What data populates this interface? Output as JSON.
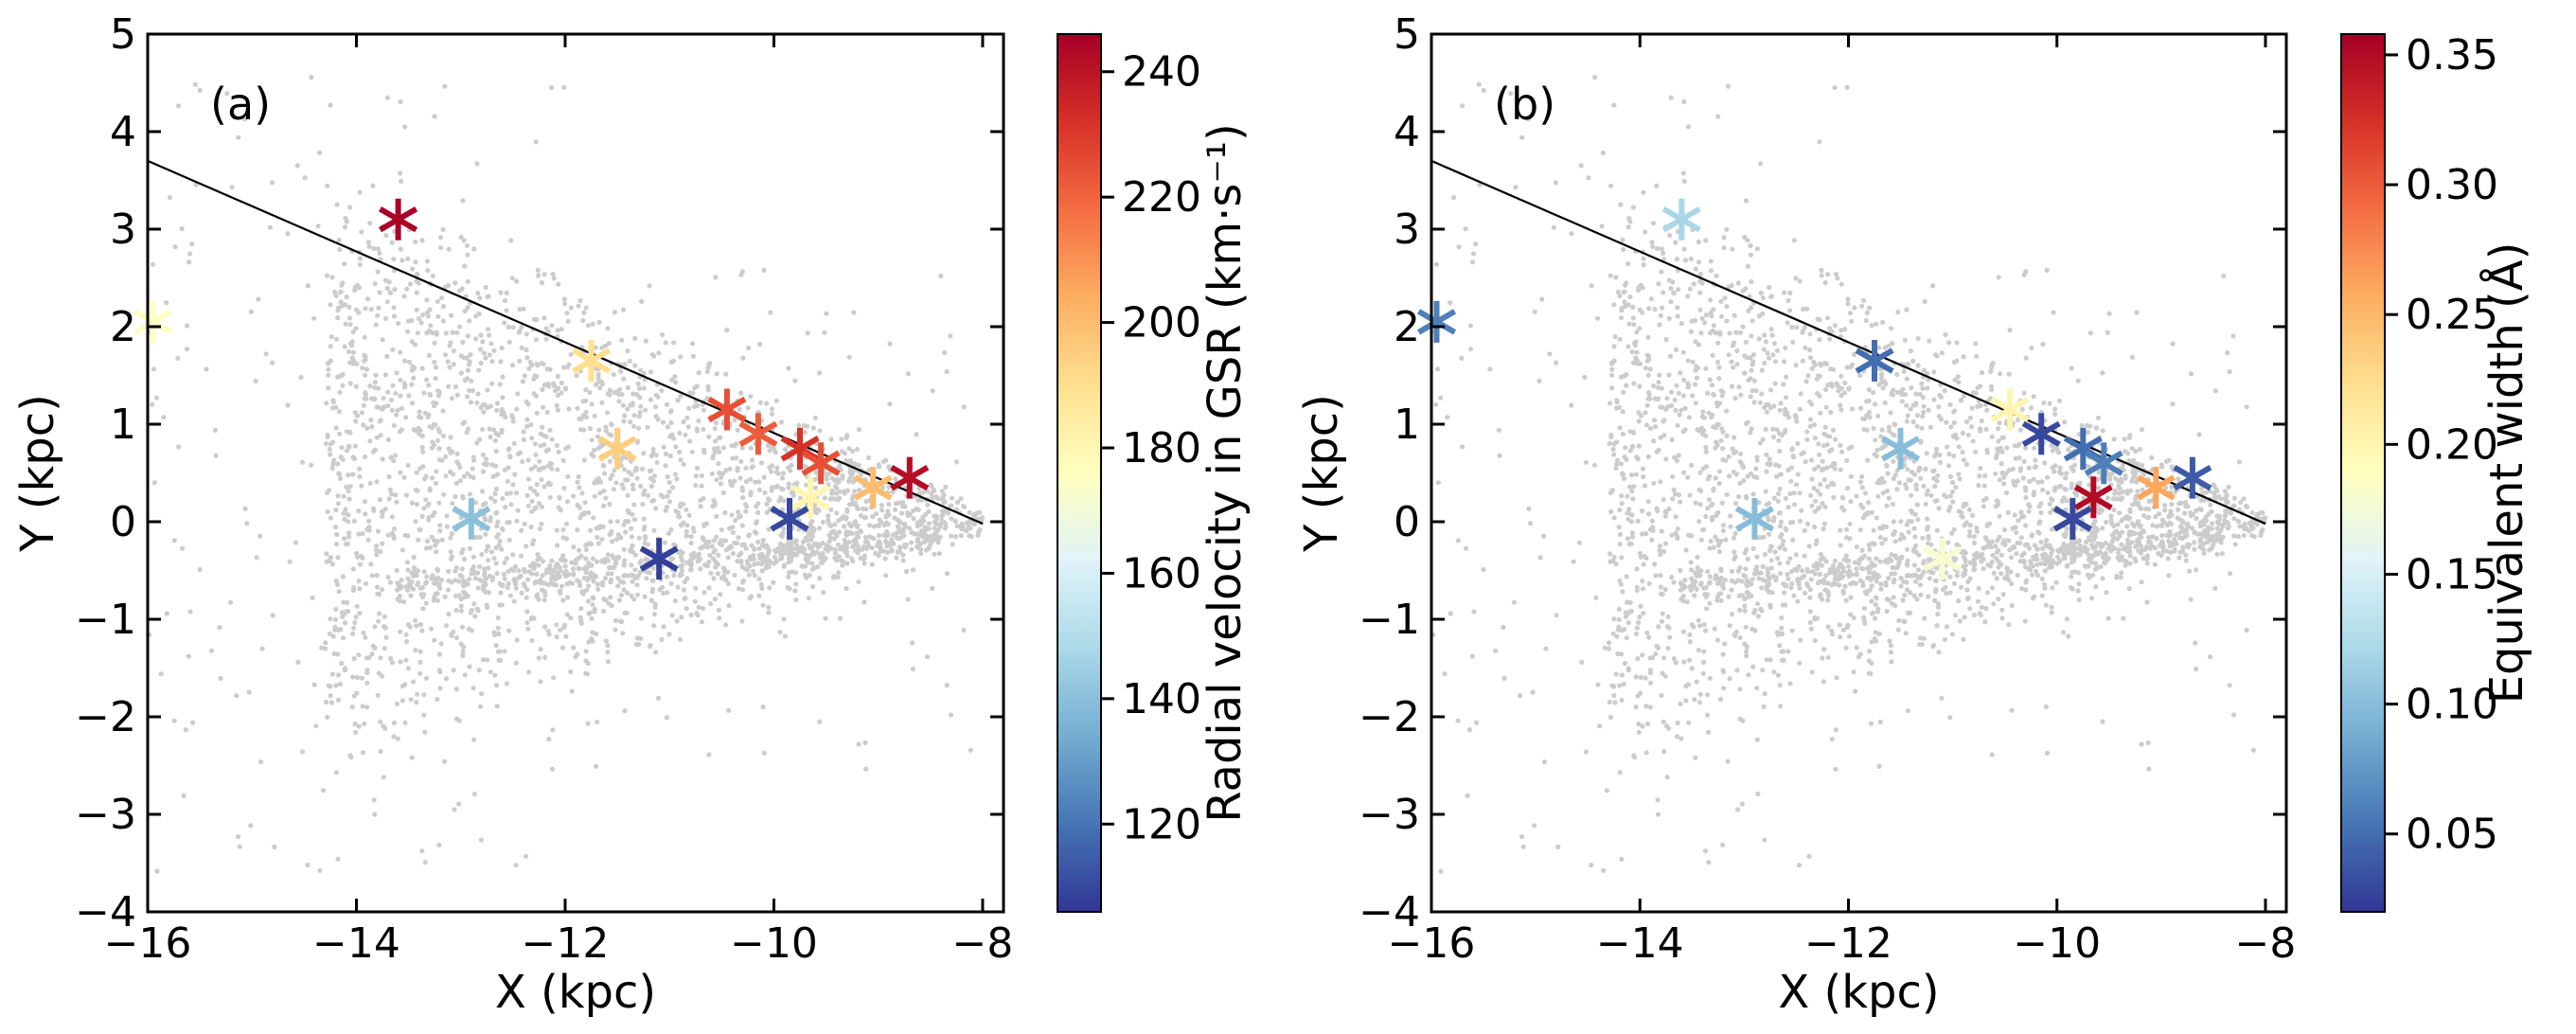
{
  "chart_data": [
    {
      "type": "scatter",
      "panel_label": "(a)",
      "xlabel": "X (kpc)",
      "ylabel": "Y (kpc)",
      "xlim": [
        -16,
        -7.8
      ],
      "ylim": [
        -4,
        5
      ],
      "xticks": [
        -16,
        -14,
        -12,
        -10,
        -8
      ],
      "xtick_labels": [
        "−16",
        "−14",
        "−12",
        "−10",
        "−8"
      ],
      "yticks": [
        -4,
        -3,
        -2,
        -1,
        0,
        1,
        2,
        3,
        4,
        5
      ],
      "ytick_labels": [
        "−4",
        "−3",
        "−2",
        "−1",
        "0",
        "1",
        "2",
        "3",
        "4",
        "5"
      ],
      "background_points_color": "#cccccc",
      "line": {
        "x": [
          -16,
          -8.0
        ],
        "y": [
          3.7,
          -0.02
        ],
        "color": "#000000"
      },
      "stars": {
        "x": [
          -13.6,
          -11.75,
          -11.5,
          -10.45,
          -10.15,
          -9.75,
          -9.55,
          -9.65,
          -9.05,
          -8.7,
          -12.9,
          -11.1,
          -9.85,
          -15.95
        ],
        "c": [
          245,
          190,
          195,
          225,
          222,
          232,
          225,
          180,
          200,
          242,
          140,
          108,
          110,
          175
        ],
        "y": [
          3.1,
          1.65,
          0.75,
          1.15,
          0.9,
          0.75,
          0.6,
          0.25,
          0.35,
          0.45,
          0.03,
          -0.38,
          0.03,
          2.05
        ]
      },
      "colorbar": {
        "label": "Radial velocity in GSR (km·s⁻¹)",
        "min": 106,
        "max": 246,
        "ticks": [
          120,
          140,
          160,
          180,
          200,
          220,
          240
        ],
        "tick_labels": [
          "120",
          "140",
          "160",
          "180",
          "200",
          "220",
          "240"
        ]
      }
    },
    {
      "type": "scatter",
      "panel_label": "(b)",
      "xlabel": "X (kpc)",
      "ylabel": "Y (kpc)",
      "xlim": [
        -16,
        -7.8
      ],
      "ylim": [
        -4,
        5
      ],
      "xticks": [
        -16,
        -14,
        -12,
        -10,
        -8
      ],
      "xtick_labels": [
        "−16",
        "−14",
        "−12",
        "−10",
        "−8"
      ],
      "yticks": [
        -4,
        -3,
        -2,
        -1,
        0,
        1,
        2,
        3,
        4,
        5
      ],
      "ytick_labels": [
        "−4",
        "−3",
        "−2",
        "−1",
        "0",
        "1",
        "2",
        "3",
        "4",
        "5"
      ],
      "background_points_color": "#cccccc",
      "line": {
        "x": [
          -16,
          -8.0
        ],
        "y": [
          3.7,
          -0.02
        ],
        "color": "#000000"
      },
      "stars": {
        "x": [
          -13.6,
          -11.75,
          -11.5,
          -10.45,
          -10.15,
          -9.75,
          -9.55,
          -9.65,
          -9.05,
          -8.7,
          -12.9,
          -11.1,
          -9.85,
          -15.95
        ],
        "c": [
          0.12,
          0.05,
          0.1,
          0.2,
          0.03,
          0.05,
          0.06,
          0.35,
          0.26,
          0.04,
          0.1,
          0.18,
          0.03,
          0.06
        ],
        "y": [
          3.1,
          1.65,
          0.75,
          1.15,
          0.9,
          0.75,
          0.6,
          0.25,
          0.35,
          0.45,
          0.03,
          -0.38,
          0.03,
          2.05
        ]
      },
      "colorbar": {
        "label": "Equivalent width (Å)",
        "min": 0.02,
        "max": 0.358,
        "ticks": [
          0.05,
          0.1,
          0.15,
          0.2,
          0.25,
          0.3,
          0.35
        ],
        "tick_labels": [
          "0.05",
          "0.10",
          "0.15",
          "0.20",
          "0.25",
          "0.30",
          "0.35"
        ]
      }
    }
  ]
}
